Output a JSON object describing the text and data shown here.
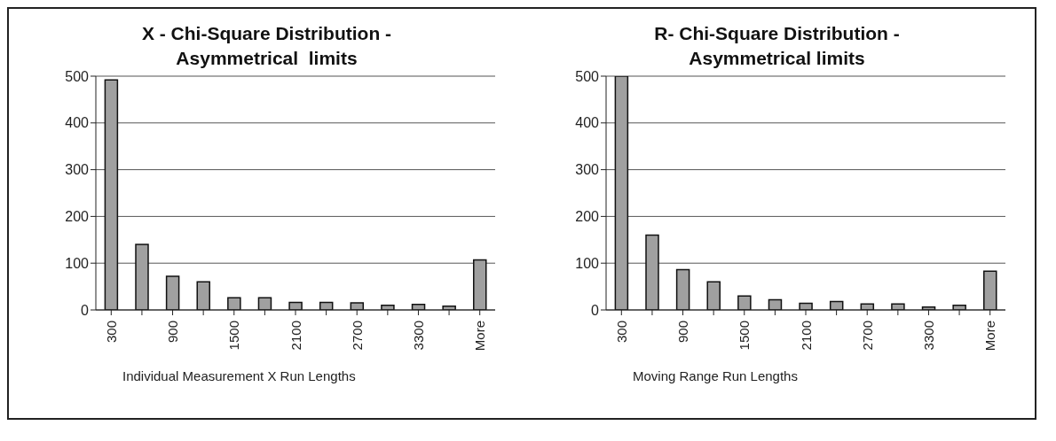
{
  "chart_data": [
    {
      "type": "bar",
      "title": "X - Chi-Square Distribution - Asymmetrical  limits",
      "xlabel": "Individual Measurement X Run Lengths",
      "categories": [
        "300",
        null,
        "900",
        null,
        "1500",
        null,
        "2100",
        null,
        "2700",
        null,
        "3300",
        null,
        "More"
      ],
      "values": [
        492,
        140,
        72,
        60,
        26,
        26,
        16,
        16,
        15,
        10,
        12,
        8,
        107
      ],
      "color": "#a0a0a0",
      "ylim": [
        0,
        500
      ],
      "yticks": [
        0,
        100,
        200,
        300,
        400,
        500
      ],
      "grid": "y",
      "legend": false
    },
    {
      "type": "bar",
      "title": "R- Chi-Square Distribution - Asymmetrical limits",
      "xlabel": "Moving Range Run Lengths",
      "categories": [
        "300",
        null,
        "900",
        null,
        "1500",
        null,
        "2100",
        null,
        "2700",
        null,
        "3300",
        null,
        "More"
      ],
      "values": [
        500,
        160,
        86,
        60,
        30,
        22,
        14,
        18,
        13,
        13,
        6,
        10,
        83
      ],
      "color": "#a0a0a0",
      "ylim": [
        0,
        500
      ],
      "yticks": [
        0,
        100,
        200,
        300,
        400,
        500
      ],
      "grid": "y",
      "legend": false
    }
  ]
}
